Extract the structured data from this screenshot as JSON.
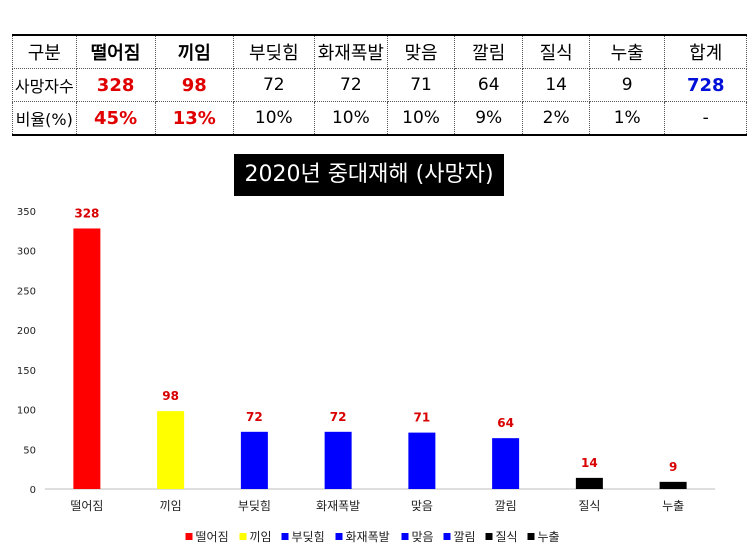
{
  "table": {
    "header": [
      "구분",
      "떨어짐",
      "끼임",
      "부딪힘",
      "화재폭발",
      "맞음",
      "깔림",
      "질식",
      "누출",
      "합계"
    ],
    "rows": [
      {
        "label": "사망자수",
        "values": [
          "328",
          "98",
          "72",
          "72",
          "71",
          "64",
          "14",
          "9",
          "728"
        ]
      },
      {
        "label": "비율(%)",
        "values": [
          "45%",
          "13%",
          "10%",
          "10%",
          "10%",
          "9%",
          "2%",
          "1%",
          "-"
        ]
      }
    ]
  },
  "chart_data": {
    "type": "bar",
    "title": "2020년 중대재해 (사망자)",
    "categories": [
      "떨어짐",
      "끼임",
      "부딪힘",
      "화재폭발",
      "맞음",
      "깔림",
      "질식",
      "누출"
    ],
    "values": [
      328,
      98,
      72,
      72,
      71,
      64,
      14,
      9
    ],
    "colors": [
      "#ff0000",
      "#ffff00",
      "#0000ff",
      "#0000ff",
      "#0000ff",
      "#0000ff",
      "#000000",
      "#000000"
    ],
    "label_color": "#d80000",
    "ylim": [
      0,
      350
    ],
    "yticks": [
      0,
      50,
      100,
      150,
      200,
      250,
      300,
      350
    ],
    "xlabel": "",
    "ylabel": "",
    "grid": false,
    "legend": {
      "position": "bottom",
      "entries": [
        "떨어짐",
        "끼임",
        "부딪힘",
        "화재폭발",
        "맞음",
        "깔림",
        "질식",
        "누출"
      ]
    }
  }
}
